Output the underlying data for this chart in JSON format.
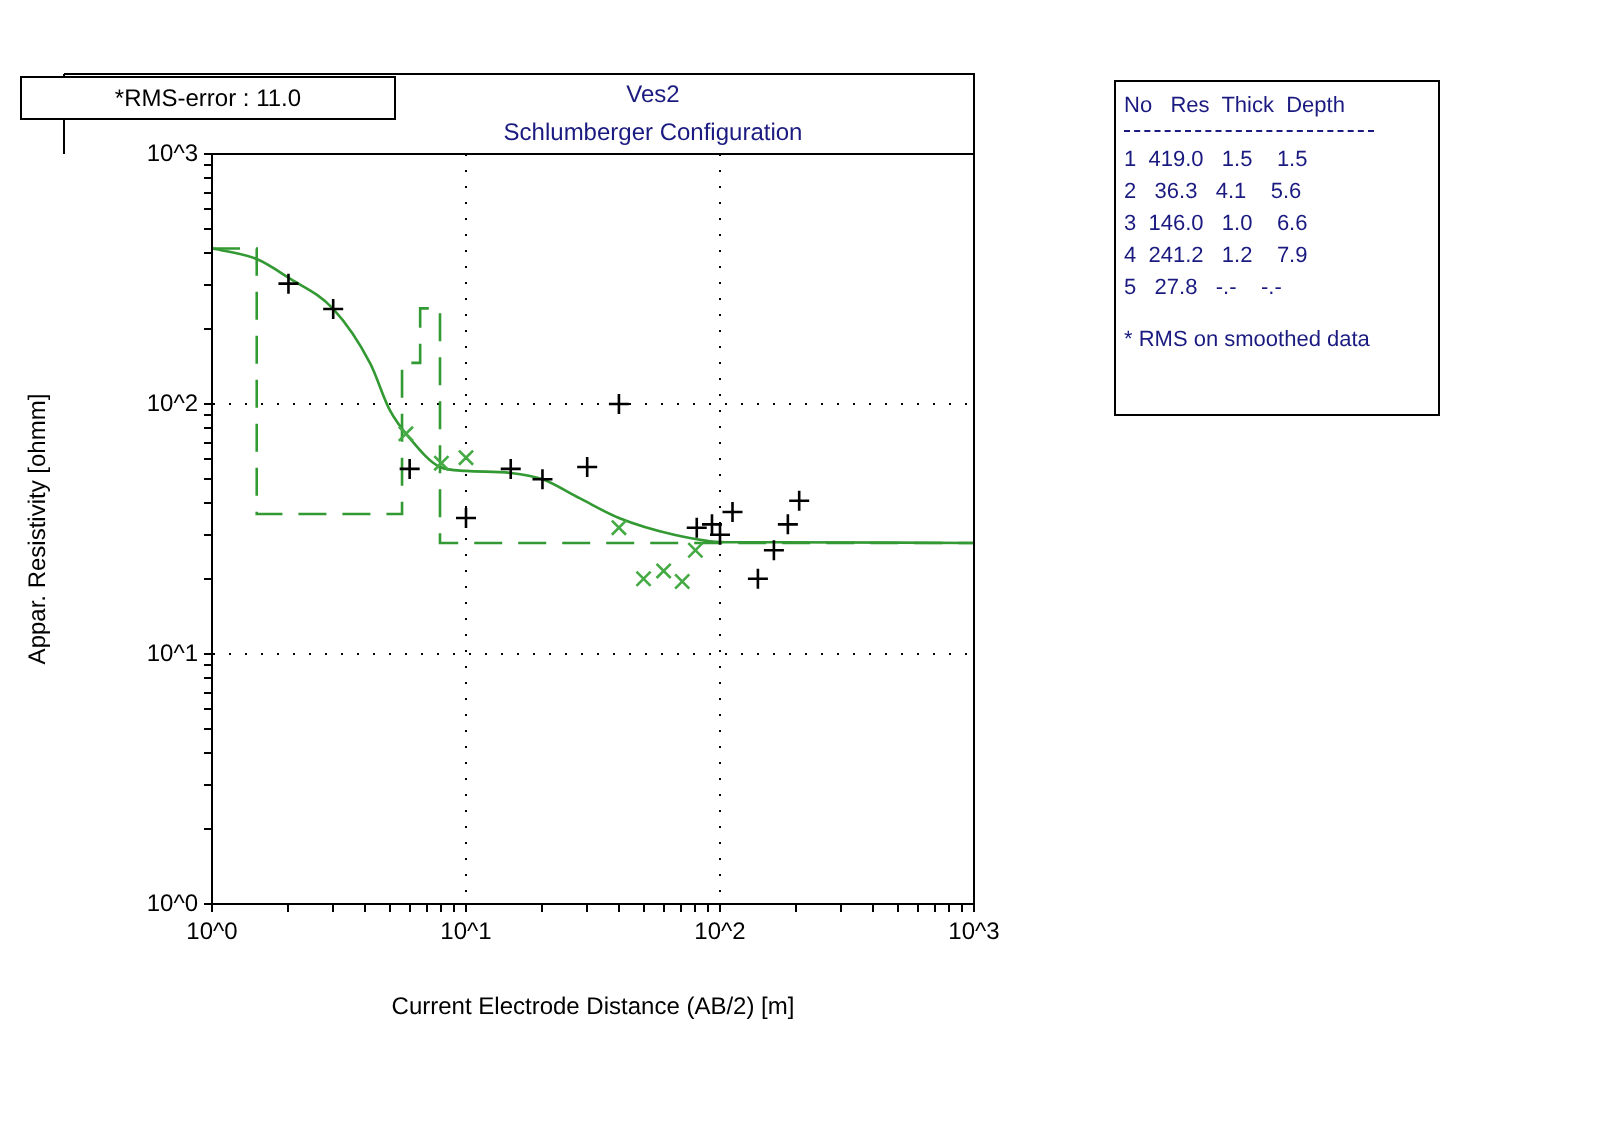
{
  "chart_data": {
    "type": "scatter",
    "title": "Ves2",
    "subtitle": "Schlumberger Configuration",
    "xlabel": "Current Electrode Distance (AB/2) [m]",
    "ylabel": "Appar. Resistivity [ohmm]",
    "log": "xy",
    "grid": true,
    "legend": false,
    "xlim": [
      1,
      1000
    ],
    "ylim": [
      1,
      1000
    ],
    "xticks": [
      {
        "value": 1,
        "label": "10^0"
      },
      {
        "value": 2,
        "label": null
      },
      {
        "value": 3,
        "label": null
      },
      {
        "value": 4,
        "label": null
      },
      {
        "value": 5,
        "label": null
      },
      {
        "value": 6,
        "label": null
      },
      {
        "value": 7,
        "label": null
      },
      {
        "value": 8,
        "label": null
      },
      {
        "value": 9,
        "label": null
      },
      {
        "value": 10,
        "label": "10^1"
      },
      {
        "value": 20,
        "label": null
      },
      {
        "value": 30,
        "label": null
      },
      {
        "value": 40,
        "label": null
      },
      {
        "value": 50,
        "label": null
      },
      {
        "value": 60,
        "label": null
      },
      {
        "value": 70,
        "label": null
      },
      {
        "value": 80,
        "label": null
      },
      {
        "value": 90,
        "label": null
      },
      {
        "value": 100,
        "label": "10^2"
      },
      {
        "value": 200,
        "label": null
      },
      {
        "value": 300,
        "label": null
      },
      {
        "value": 400,
        "label": null
      },
      {
        "value": 500,
        "label": null
      },
      {
        "value": 600,
        "label": null
      },
      {
        "value": 700,
        "label": null
      },
      {
        "value": 800,
        "label": null
      },
      {
        "value": 900,
        "label": null
      },
      {
        "value": 1000,
        "label": "10^3"
      }
    ],
    "yticks": [
      {
        "value": 1,
        "label": "10^0"
      },
      {
        "value": 2,
        "label": null
      },
      {
        "value": 3,
        "label": null
      },
      {
        "value": 4,
        "label": null
      },
      {
        "value": 5,
        "label": null
      },
      {
        "value": 6,
        "label": null
      },
      {
        "value": 7,
        "label": null
      },
      {
        "value": 8,
        "label": null
      },
      {
        "value": 9,
        "label": null
      },
      {
        "value": 10,
        "label": "10^1"
      },
      {
        "value": 20,
        "label": null
      },
      {
        "value": 30,
        "label": null
      },
      {
        "value": 40,
        "label": null
      },
      {
        "value": 50,
        "label": null
      },
      {
        "value": 60,
        "label": null
      },
      {
        "value": 70,
        "label": null
      },
      {
        "value": 80,
        "label": null
      },
      {
        "value": 90,
        "label": null
      },
      {
        "value": 100,
        "label": "10^2"
      },
      {
        "value": 200,
        "label": null
      },
      {
        "value": 300,
        "label": null
      },
      {
        "value": 400,
        "label": null
      },
      {
        "value": 500,
        "label": null
      },
      {
        "value": 600,
        "label": null
      },
      {
        "value": 700,
        "label": null
      },
      {
        "value": 800,
        "label": null
      },
      {
        "value": 900,
        "label": null
      },
      {
        "value": 1000,
        "label": "10^3"
      }
    ],
    "series": [
      {
        "type": "scatter",
        "marker": "cross",
        "color": "#000000",
        "x": [
          2,
          3,
          6,
          10,
          15,
          20,
          30,
          40,
          81,
          93,
          100,
          112,
          141,
          163,
          185,
          205
        ],
        "values": [
          303,
          240,
          55,
          35,
          55,
          50,
          56,
          100,
          32,
          33,
          30,
          37,
          20,
          26,
          33,
          41
        ]
      },
      {
        "type": "scatter",
        "marker": "x",
        "color": "#44aa44",
        "x": [
          5.8,
          8,
          10,
          40,
          50,
          60,
          71,
          80
        ],
        "values": [
          76,
          58,
          61,
          32,
          20,
          21.5,
          19.5,
          26
        ]
      },
      {
        "type": "step",
        "line_style": "dashed",
        "marker": "none",
        "color": "#339933",
        "x": [
          1,
          1.5,
          5.6,
          6.6,
          7.9,
          1000
        ],
        "values": [
          419,
          36.3,
          146,
          241.2,
          27.8,
          27.8
        ]
      },
      {
        "type": "line",
        "line_style": "solid",
        "marker": "none",
        "color": "#339933",
        "x": [
          1,
          1.5,
          2,
          3,
          4.2,
          5,
          6,
          7.9,
          10,
          15,
          20,
          28,
          40,
          66,
          105,
          163,
          1000
        ],
        "values": [
          420,
          380,
          320,
          240,
          145,
          95,
          73,
          56,
          54,
          53,
          50,
          42,
          35,
          30,
          28,
          28,
          27.8
        ]
      }
    ],
    "annotations": [
      "*RMS-error : 11.0",
      "No   Res  Thick  Depth",
      "1  419.0   1.5    1.5",
      "2   36.3   4.1    5.6",
      "3  146.0   1.0    6.6",
      "4  241.2   1.2    7.9",
      "5   27.8   -.-    -.-",
      "* RMS on smoothed data"
    ]
  }
}
